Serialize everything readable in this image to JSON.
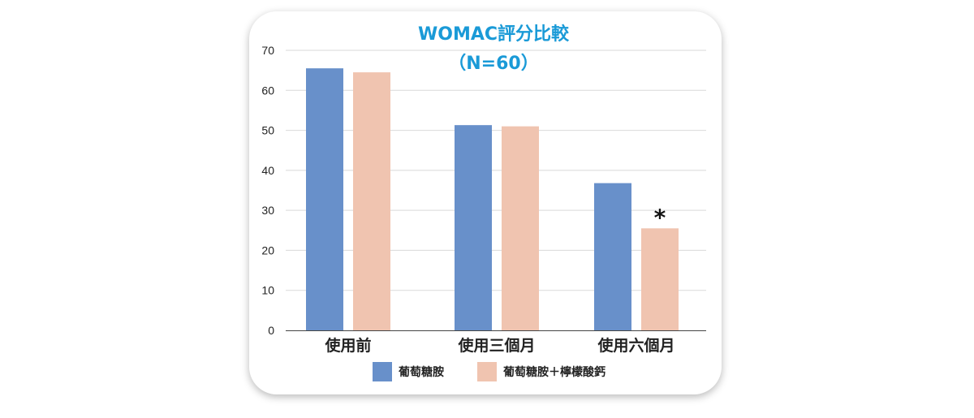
{
  "chart_data": {
    "type": "bar",
    "title": "WOMAC評分比較",
    "subtitle": "（N=60）",
    "categories": [
      "使用前",
      "使用三個月",
      "使用六個月"
    ],
    "series": [
      {
        "name": "葡萄糖胺",
        "values": [
          65.5,
          51.3,
          36.8
        ],
        "color": "#6890ca"
      },
      {
        "name": "葡萄糖胺＋檸檬酸鈣",
        "values": [
          64.5,
          51.0,
          25.5
        ],
        "color": "#f0c4b0"
      }
    ],
    "ylim": [
      0,
      70
    ],
    "yticks": [
      0,
      10,
      20,
      30,
      40,
      50,
      60,
      70
    ],
    "xlabel": "",
    "ylabel": "",
    "grid": true,
    "legend_position": "bottom",
    "annotations": [
      {
        "text": "*",
        "series_index": 1,
        "category_index": 2
      }
    ],
    "title_color": "#1a9ad7"
  }
}
